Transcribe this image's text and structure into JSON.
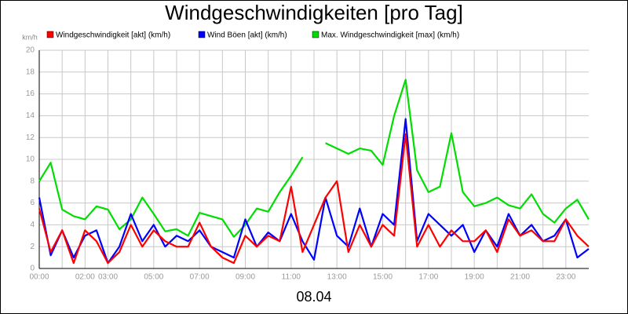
{
  "chart_data": {
    "type": "line",
    "title": "Windgeschwindigkeiten [pro Tag]",
    "y_unit": "km/h",
    "xlabel": "08.04",
    "x": [
      0,
      0.5,
      1,
      1.5,
      2,
      2.5,
      3,
      3.5,
      4,
      4.5,
      5,
      5.5,
      6,
      6.5,
      7,
      7.5,
      8,
      8.5,
      9,
      9.5,
      10,
      10.5,
      11,
      11.5,
      12,
      12.5,
      13,
      13.5,
      14,
      14.5,
      15,
      15.5,
      16,
      16.5,
      17,
      17.5,
      18,
      18.5,
      19,
      19.5,
      20,
      20.5,
      21,
      21.5,
      22,
      22.5,
      23,
      23.5,
      24
    ],
    "series": [
      {
        "name": "Windgeschwindigkeit [akt] (km/h)",
        "color": "#ff0000",
        "values": [
          5.5,
          1.5,
          3.5,
          0.5,
          3.5,
          2.5,
          0.5,
          1.5,
          4.0,
          2.0,
          3.5,
          2.5,
          2.0,
          2.0,
          4.2,
          2.0,
          1.0,
          0.5,
          3.0,
          2.0,
          3.0,
          2.5,
          7.5,
          1.5,
          4.0,
          6.5,
          8.0,
          1.5,
          4.0,
          2.0,
          4.0,
          3.0,
          12.3,
          2.0,
          4.0,
          2.0,
          3.5,
          2.5,
          2.5,
          3.5,
          1.5,
          4.5,
          3.0,
          3.5,
          2.5,
          2.5,
          4.5,
          3.0,
          2.0
        ]
      },
      {
        "name": "Wind Böen [akt] (km/h)",
        "color": "#0000ff",
        "values": [
          6.5,
          1.2,
          3.5,
          1.0,
          3.0,
          3.5,
          0.5,
          2.0,
          5.0,
          2.5,
          4.0,
          2.0,
          3.0,
          2.5,
          3.5,
          2.0,
          1.5,
          1.0,
          4.5,
          2.0,
          3.3,
          2.5,
          5.0,
          2.5,
          0.8,
          6.5,
          3.0,
          2.0,
          5.5,
          2.0,
          5.0,
          4.0,
          13.7,
          2.5,
          5.0,
          4.0,
          3.0,
          4.0,
          1.5,
          3.5,
          2.0,
          5.0,
          3.0,
          4.0,
          2.5,
          3.0,
          4.5,
          1.0,
          1.8
        ]
      },
      {
        "name": "Max. Windgeschwindigkeit [max] (km/h)",
        "color": "#00dd00",
        "values": [
          8.0,
          9.7,
          5.4,
          4.8,
          4.5,
          5.7,
          5.4,
          3.6,
          4.5,
          6.5,
          5.0,
          3.4,
          3.6,
          3.0,
          5.1,
          4.8,
          4.5,
          2.9,
          4.0,
          5.5,
          5.2,
          7.0,
          8.5,
          10.2,
          null,
          11.5,
          11.0,
          10.5,
          11.0,
          10.8,
          9.5,
          14.0,
          17.3,
          9.0,
          7.0,
          7.5,
          12.4,
          7.0,
          5.7,
          6.0,
          6.5,
          5.8,
          5.5,
          6.8,
          5.0,
          4.2,
          5.5,
          6.3,
          4.5
        ]
      }
    ],
    "xlim": [
      0,
      24
    ],
    "xticks": [
      {
        "value": 0,
        "label": "00:00"
      },
      {
        "value": 2,
        "label": "02:00"
      },
      {
        "value": 3,
        "label": "03:00"
      },
      {
        "value": 5,
        "label": "05:00"
      },
      {
        "value": 7,
        "label": "07:00"
      },
      {
        "value": 9,
        "label": "09:00"
      },
      {
        "value": 11,
        "label": "11:00"
      },
      {
        "value": 13,
        "label": "13:00"
      },
      {
        "value": 15,
        "label": "15:00"
      },
      {
        "value": 17,
        "label": "17:00"
      },
      {
        "value": 19,
        "label": "19:00"
      },
      {
        "value": 21,
        "label": "21:00"
      },
      {
        "value": 23,
        "label": "23:00"
      }
    ],
    "xgrid": [
      1,
      4,
      6,
      8,
      10,
      12,
      14,
      16,
      18,
      20,
      22
    ],
    "ylim": [
      0,
      20
    ],
    "yticks": [
      0,
      2,
      4,
      6,
      8,
      10,
      12,
      14,
      16,
      18,
      20
    ],
    "grid": true
  }
}
